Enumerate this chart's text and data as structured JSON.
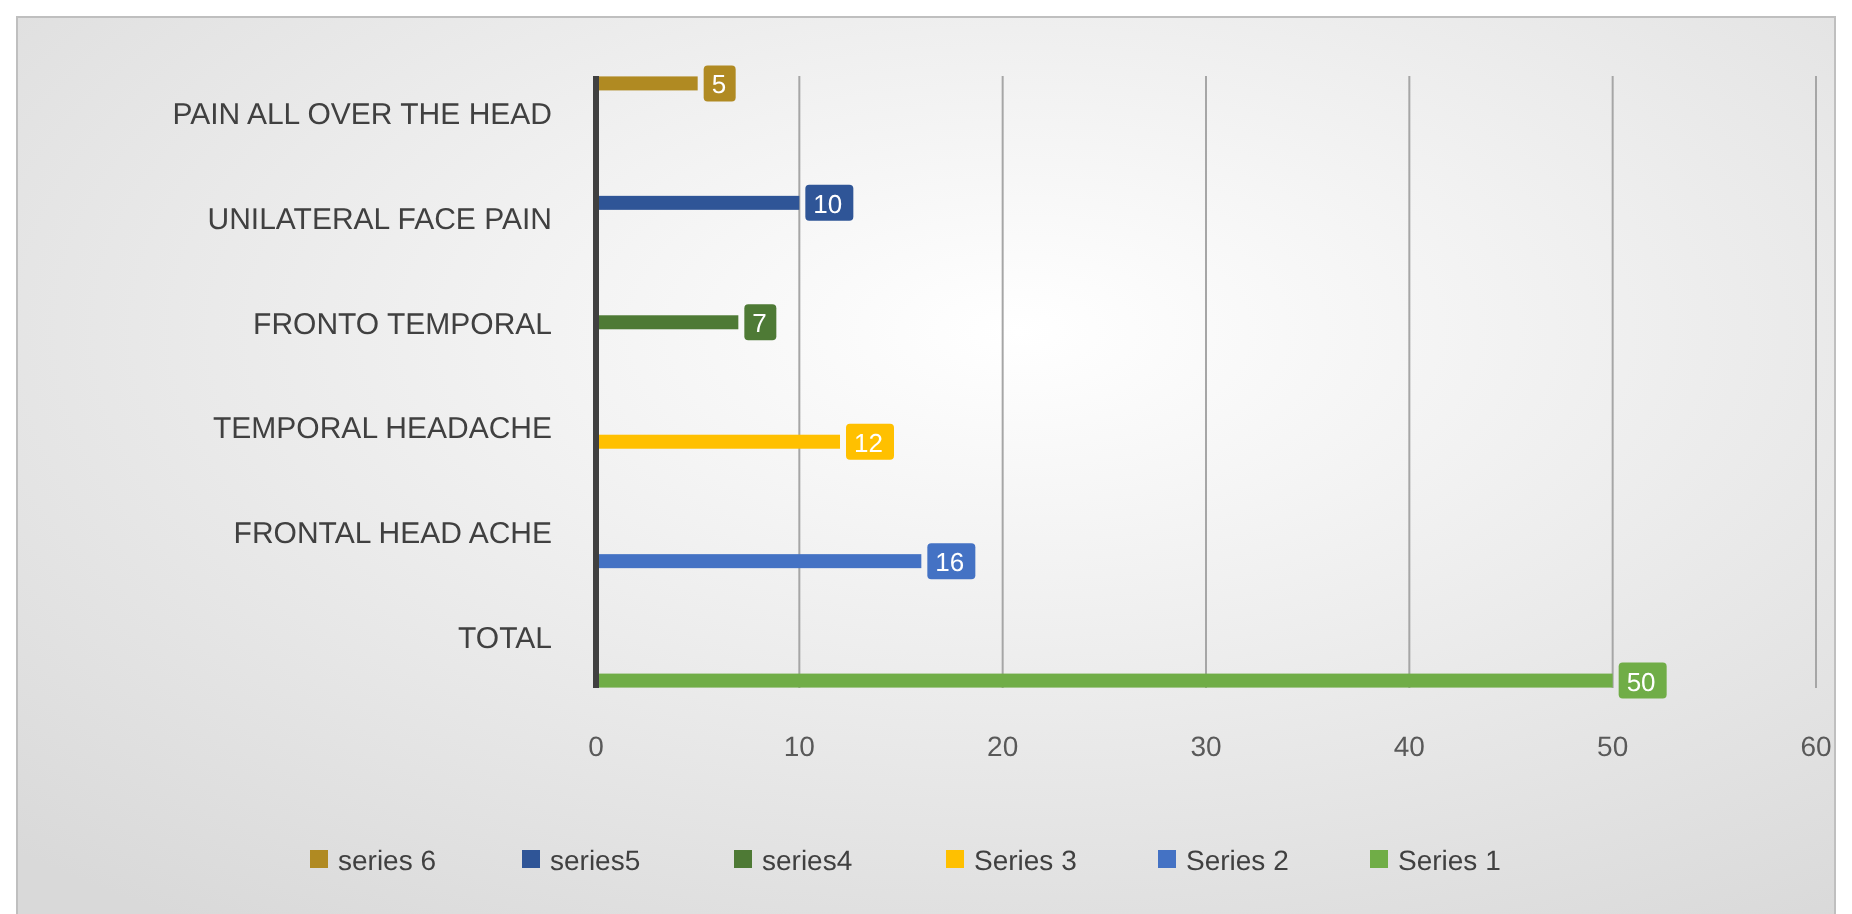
{
  "chart_data": {
    "type": "bar",
    "orientation": "horizontal",
    "categories": [
      "PAIN ALL OVER THE HEAD",
      "UNILATERAL FACE PAIN",
      "FRONTO TEMPORAL",
      "TEMPORAL HEADACHE",
      "FRONTAL HEAD ACHE",
      "TOTAL"
    ],
    "series": [
      {
        "name": "Series 1",
        "color": "#70ad47",
        "values": [
          null,
          null,
          null,
          null,
          null,
          50
        ]
      },
      {
        "name": "Series 2",
        "color": "#4472c4",
        "values": [
          null,
          null,
          null,
          null,
          16,
          null
        ]
      },
      {
        "name": "Series 3",
        "color": "#ffc000",
        "values": [
          null,
          null,
          null,
          12,
          null,
          null
        ]
      },
      {
        "name": "series4",
        "color": "#4e7a35",
        "values": [
          null,
          null,
          7,
          null,
          null,
          null
        ]
      },
      {
        "name": "series5",
        "color": "#2f5597",
        "values": [
          null,
          10,
          null,
          null,
          null,
          null
        ]
      },
      {
        "name": "series 6",
        "color": "#b08a22",
        "values": [
          5,
          null,
          null,
          null,
          null,
          null
        ]
      }
    ],
    "xlim": [
      0,
      60
    ],
    "xticks": [
      0,
      10,
      20,
      30,
      40,
      50,
      60
    ],
    "grid": "x",
    "legend": "bottom",
    "data_labels": true
  }
}
